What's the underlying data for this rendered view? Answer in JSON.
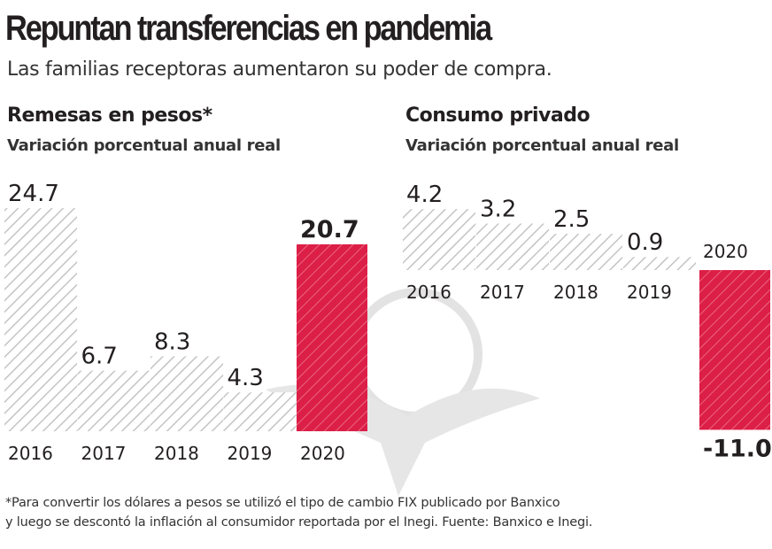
{
  "title": "Repuntan transferencias en pandemia",
  "subtitle": "Las familias receptoras aumentaron su poder de compra.",
  "chart_data": [
    {
      "type": "bar",
      "title": "Remesas en pesos*",
      "subtitle": "Variación porcentual anual real",
      "categories": [
        "2016",
        "2017",
        "2018",
        "2019",
        "2020"
      ],
      "values": [
        24.7,
        6.7,
        8.3,
        4.3,
        20.7
      ],
      "labels": [
        "24.7",
        "6.7",
        "8.3",
        "4.3",
        "20.7"
      ],
      "highlight": "2020",
      "grid": false
    },
    {
      "type": "bar",
      "title": "Consumo privado",
      "subtitle": "Variación porcentual anual real",
      "categories": [
        "2016",
        "2017",
        "2018",
        "2019",
        "2020"
      ],
      "values": [
        4.2,
        3.2,
        2.5,
        0.9,
        -11.0
      ],
      "labels": [
        "4.2",
        "3.2",
        "2.5",
        "0.9",
        "-11.0"
      ],
      "highlight": "2020",
      "grid": false
    }
  ],
  "colors": {
    "highlight": "#dc1f47",
    "hatch": "#c8c8c8",
    "text": "#231f20"
  },
  "footnote": [
    "*Para convertir los dólares a pesos se utilizó el tipo de cambio FIX publicado por Banxico",
    "y luego se descontó la inflación al consumidor reportada por el Inegi. Fuente: Banxico e Inegi."
  ]
}
